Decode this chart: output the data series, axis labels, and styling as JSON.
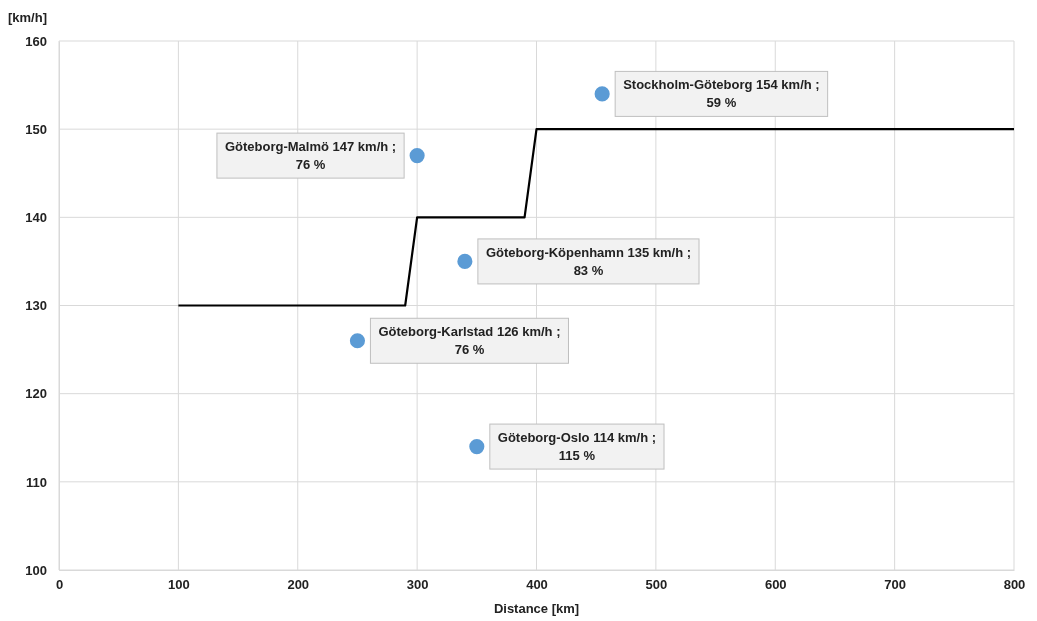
{
  "chart_data": {
    "type": "scatter",
    "xlabel": "Distance [km]",
    "ylabel": "[km/h]",
    "xlim": [
      0,
      800
    ],
    "xticks": [
      0,
      100,
      200,
      300,
      400,
      500,
      600,
      700,
      800
    ],
    "ylim": [
      100,
      160
    ],
    "yticks": [
      100,
      110,
      120,
      130,
      140,
      150,
      160
    ],
    "grid": true,
    "series": [
      {
        "type": "line",
        "color": "#000000",
        "x": [
          100,
          290,
          300,
          390,
          400,
          800
        ],
        "values": [
          130,
          130,
          140,
          140,
          150,
          150
        ]
      },
      {
        "marker": "circle",
        "color": "#5b9bd5",
        "x": [
          455,
          300,
          340,
          250,
          350
        ],
        "values": [
          154,
          147,
          135,
          126,
          114
        ]
      }
    ],
    "annotations": [
      {
        "text": "Stockholm-Göteborg 154 km/h ;\n59 %",
        "x": 455,
        "y": 154
      },
      {
        "text": "Göteborg-Malmö 147 km/h ;\n76 %",
        "x": 300,
        "y": 147
      },
      {
        "text": "Göteborg-Köpenhamn 135 km/h ;\n83 %",
        "x": 340,
        "y": 135
      },
      {
        "text": "Göteborg-Karlstad 126 km/h ;\n76 %",
        "x": 250,
        "y": 126
      },
      {
        "text": "Göteborg-Oslo 114 km/h ;\n115 %",
        "x": 350,
        "y": 114
      }
    ]
  }
}
